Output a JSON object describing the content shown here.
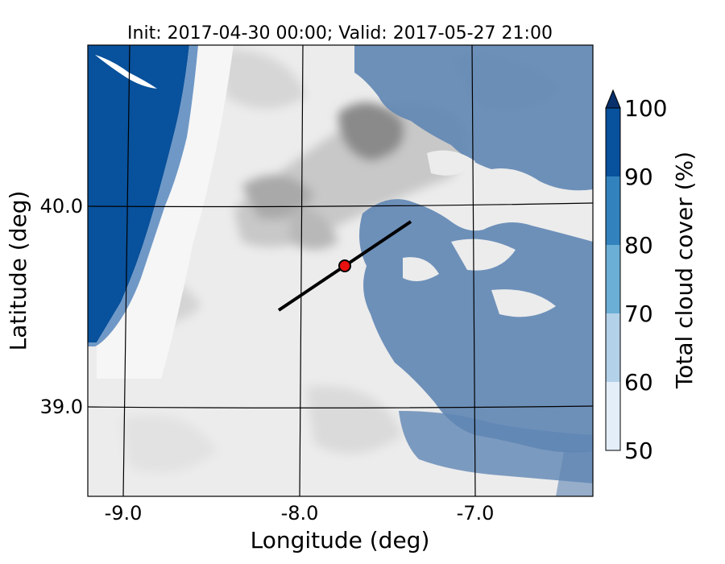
{
  "title": "Init: 2017-04-30 00:00; Valid: 2017-05-27 21:00",
  "xlabel": "Longitude (deg)",
  "ylabel": "Latitude (deg)",
  "x_ticks": [
    "-9.0",
    "-8.0",
    "-7.0"
  ],
  "y_ticks": [
    "40.0",
    "39.0"
  ],
  "colorbar": {
    "label": "Total cloud cover (%)",
    "ticks": [
      "50",
      "60",
      "70",
      "80",
      "90",
      "100"
    ],
    "colors": [
      "#e3eef8",
      "#b3d1e8",
      "#6baed6",
      "#3182bd",
      "#08519c",
      "#08306b"
    ],
    "extend": "max"
  },
  "map": {
    "lon_range": [
      -9.25,
      -6.38
    ],
    "lat_range": [
      38.55,
      40.8
    ],
    "land_color": "#ececec",
    "terrain_color": "#9a9a9a",
    "cloud_color": "#5f86b4",
    "marker": {
      "lon": -7.74,
      "lat": 39.69,
      "color": "#e8110f"
    },
    "transect": [
      [
        -8.12,
        39.48
      ],
      [
        -7.37,
        39.92
      ]
    ]
  }
}
